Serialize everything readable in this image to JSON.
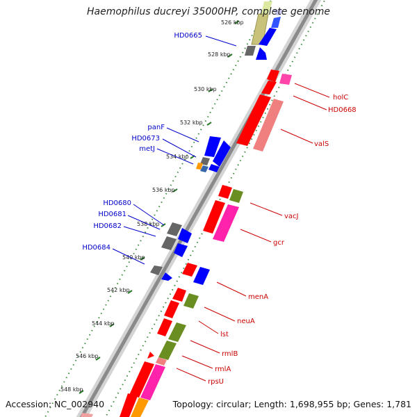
{
  "title": "Haemophilus ducreyi 35000HP, complete genome",
  "footer": {
    "accession": "Accession: NC_002940",
    "summary": "Topology: circular; Length: 1,698,955 bp; Genes: 1,781"
  },
  "colors": {
    "forward": "#ff0000",
    "reverse": "#0000ff",
    "olive": "#6b8e23",
    "grey": "#666666",
    "pink": "#ff44aa",
    "salmon": "#f08080",
    "orange": "#ff9900",
    "backbone": "#888888",
    "tick": "#228822"
  },
  "ticks": [
    "526 kbp",
    "528 kbp",
    "530 kbp",
    "532 kbp",
    "534 kbp",
    "536 kbp",
    "538 kbp",
    "540 kbp",
    "542 kbp",
    "544 kbp",
    "546 kbp",
    "548 kbp"
  ],
  "left_labels": [
    "HD0665",
    "panF",
    "HD0673",
    "metJ",
    "HD0680",
    "HD0681",
    "HD0682",
    "HD0684"
  ],
  "right_labels": [
    "holC",
    "HD0668",
    "valS",
    "vacJ",
    "gcr",
    "menA",
    "neuA",
    "lst",
    "rmlB",
    "rmlA",
    "rpsU"
  ]
}
